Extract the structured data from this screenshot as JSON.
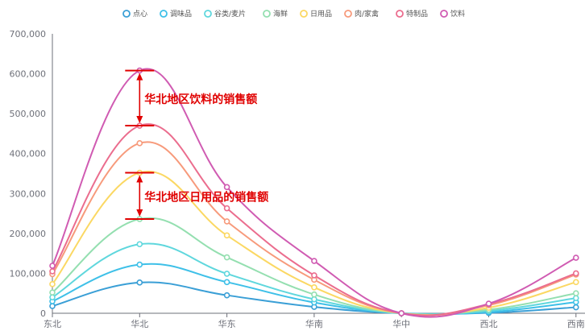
{
  "chart_data": {
    "type": "line",
    "smooth": true,
    "categories": [
      "东北",
      "华北",
      "华东",
      "华南",
      "华中",
      "西北",
      "西南"
    ],
    "ylim": [
      0,
      700000
    ],
    "yticks": [
      0,
      100000,
      200000,
      300000,
      400000,
      500000,
      600000,
      700000
    ],
    "ytick_labels": [
      "0",
      "100,000",
      "200,000",
      "300,000",
      "400,000",
      "500,000",
      "600,000",
      "700,000"
    ],
    "legend_position": "top-center",
    "series": [
      {
        "name": "点心",
        "color": "#3a9fd6",
        "values": [
          18000,
          77000,
          45000,
          16000,
          0,
          1000,
          15000
        ]
      },
      {
        "name": "调味品",
        "color": "#3ec0e8",
        "values": [
          30000,
          122000,
          78000,
          27000,
          0,
          3000,
          28000
        ]
      },
      {
        "name": "谷类/麦片",
        "color": "#5fd7dd",
        "values": [
          40000,
          173000,
          99000,
          35000,
          0,
          6000,
          38000
        ]
      },
      {
        "name": "海鲜",
        "color": "#94dfb0",
        "values": [
          52000,
          236000,
          140000,
          47000,
          0,
          9000,
          50000
        ]
      },
      {
        "name": "日用品",
        "color": "#fbd863",
        "values": [
          73000,
          352000,
          195000,
          65000,
          0,
          14000,
          78000
        ]
      },
      {
        "name": "肉/家禽",
        "color": "#f79a7b",
        "values": [
          98000,
          426000,
          230000,
          84000,
          0,
          20000,
          97000
        ]
      },
      {
        "name": "特制品",
        "color": "#eb6d8e",
        "values": [
          105000,
          470000,
          263000,
          95000,
          0,
          23000,
          100000
        ]
      },
      {
        "name": "饮料",
        "color": "#d05bb2",
        "values": [
          119000,
          608000,
          316000,
          131000,
          0,
          24000,
          139000
        ]
      }
    ],
    "annotations": [
      {
        "text": "华北地区饮料的销售额",
        "category": "华北",
        "from": 470000,
        "to": 608000
      },
      {
        "text": "华北地区日用品的销售额",
        "category": "华北",
        "from": 236000,
        "to": 352000
      }
    ],
    "annotation_color": "#e00000"
  }
}
